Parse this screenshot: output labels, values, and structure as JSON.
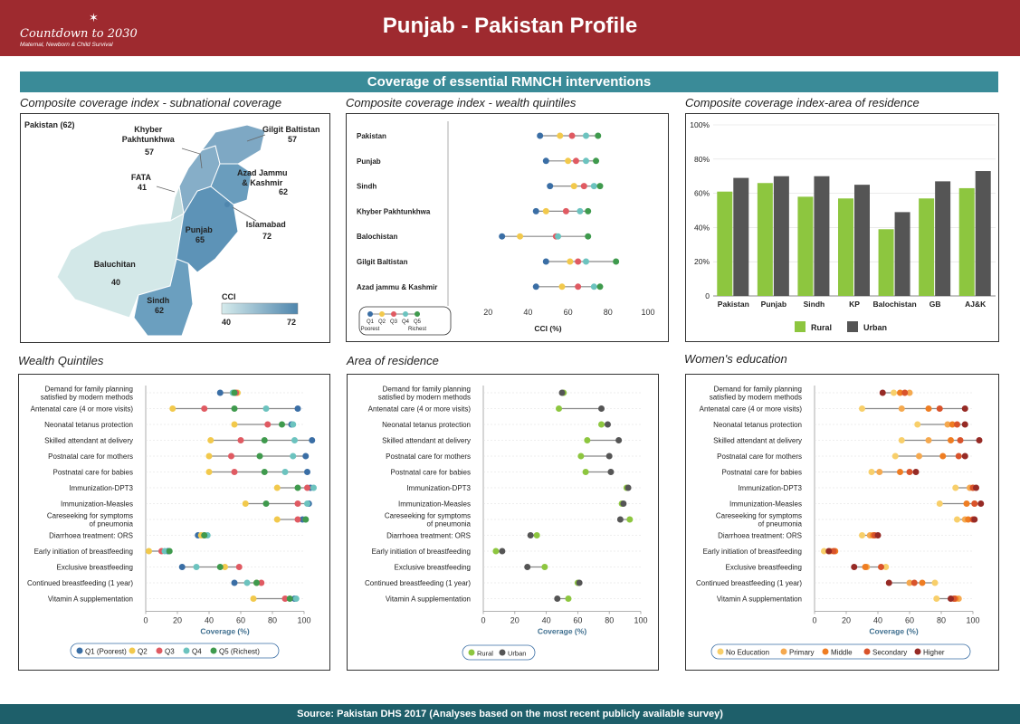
{
  "header": {
    "logo_title": "Countdown to 2030",
    "logo_subtitle": "Maternal, Newborn & Child Survival",
    "title": "Punjab - Pakistan  Profile"
  },
  "section_title": "Coverage of essential RMNCH interventions",
  "footer": "Source: Pakistan DHS 2017 (Analyses based on the most recent publicly available survey)",
  "colors": {
    "q1": "#3a6ea5",
    "q2": "#f2c94c",
    "q3": "#e05a62",
    "q4": "#6cc3bf",
    "q5": "#3f9a4d",
    "rural": "#8dc63f",
    "urban": "#555555",
    "no_education": "#f8cf6a",
    "primary": "#f5a94f",
    "middle": "#ef7d22",
    "secondary": "#d9532b",
    "higher": "#962a25"
  },
  "map": {
    "title": "Composite coverage index - subnational coverage",
    "national": "Pakistan (62)",
    "regions": [
      {
        "name": "Khyber\nPakhtunkhwa",
        "value": "57"
      },
      {
        "name": "Gilgit Baltistan",
        "value": "57"
      },
      {
        "name": "FATA",
        "value": "41"
      },
      {
        "name": "Azad Jammu\n& Kashmir",
        "value": "62"
      },
      {
        "name": "Islamabad",
        "value": "72"
      },
      {
        "name": "Punjab",
        "value": "65"
      },
      {
        "name": "Baluchitan",
        "value": "40"
      },
      {
        "name": "Sindh",
        "value": "62"
      }
    ],
    "legend_title": "CCI",
    "legend_min": "40",
    "legend_max": "72"
  },
  "chart_data": [
    {
      "type": "scatter",
      "id": "cci_wealth",
      "title": "Composite coverage index - wealth quintiles",
      "xlabel": "CCI (%)",
      "xlim": [
        0,
        100
      ],
      "xticks": [
        0,
        20,
        40,
        60,
        80,
        100
      ],
      "categories": [
        "Pakistan",
        "Punjab",
        "Sindh",
        "Khyber Pakhtunkhwa",
        "Balochistan",
        "Gilgit Baltistan",
        "Azad jammu & Kashmir"
      ],
      "series": [
        {
          "name": "Q1",
          "values": [
            46,
            49,
            51,
            44,
            27,
            49,
            44
          ]
        },
        {
          "name": "Q2",
          "values": [
            56,
            60,
            63,
            49,
            36,
            61,
            57
          ]
        },
        {
          "name": "Q3",
          "values": [
            62,
            64,
            68,
            59,
            54,
            65,
            65
          ]
        },
        {
          "name": "Q4",
          "values": [
            69,
            69,
            73,
            66,
            55,
            69,
            73
          ]
        },
        {
          "name": "Q5",
          "values": [
            75,
            74,
            76,
            70,
            70,
            84,
            76
          ]
        }
      ],
      "legend": {
        "labels": [
          "Q1",
          "Q2",
          "Q3",
          "Q4",
          "Q5"
        ],
        "sub_left": "Poorest",
        "sub_right": "Richest"
      }
    },
    {
      "type": "bar",
      "id": "cci_residence",
      "title": "Composite coverage index-area of residence",
      "categories": [
        "Pakistan",
        "Punjab",
        "Sindh",
        "KP",
        "Balochistan",
        "GB",
        "AJ&K"
      ],
      "ylim": [
        0,
        100
      ],
      "yticks": [
        "0",
        "20%",
        "40%",
        "60%",
        "80%",
        "100%"
      ],
      "series": [
        {
          "name": "Rural",
          "values": [
            61,
            66,
            58,
            57,
            39,
            57,
            63
          ]
        },
        {
          "name": "Urban",
          "values": [
            69,
            70,
            70,
            65,
            49,
            67,
            73
          ]
        }
      ]
    },
    {
      "type": "scatter",
      "id": "wealth_quintiles",
      "title": "Wealth Quintiles",
      "xlabel": "Coverage (%)",
      "xlim": [
        0,
        100
      ],
      "xticks": [
        0,
        20,
        40,
        60,
        80,
        100
      ],
      "categories": [
        "Demand for family planning\nsatisfied by modern methods",
        "Antenatal care (4 or more visits)",
        "Neonatal tetanus protection",
        "Skilled attendant at delivery",
        "Postnatal care for mothers",
        "Postnatal care for babies",
        "Immunization-DPT3",
        "Immunization-Measles",
        "Careseeking for symptoms\nof pneumonia",
        "Diarrhoea treatment: ORS",
        "Early initiation of breastfeeding",
        "Exclusive breastfeeding",
        "Continued breastfeeding (1 year)",
        "Vitamin A supplementation"
      ],
      "series": [
        {
          "name": "Q1 (Poorest)",
          "values": [
            47,
            96,
            92,
            105,
            101,
            102,
            104,
            103,
            99,
            33,
            14,
            23,
            56,
            94
          ]
        },
        {
          "name": "Q2",
          "values": [
            58,
            17,
            56,
            41,
            40,
            40,
            83,
            63,
            83,
            35,
            2,
            50,
            70,
            68
          ]
        },
        {
          "name": "Q3",
          "values": [
            57,
            37,
            77,
            60,
            54,
            56,
            102,
            96,
            96,
            37,
            10,
            59,
            73,
            88
          ]
        },
        {
          "name": "Q4",
          "values": [
            55,
            76,
            93,
            94,
            93,
            88,
            106,
            102,
            101,
            39,
            12,
            32,
            64,
            95
          ]
        },
        {
          "name": "Q5 (Richest)",
          "values": [
            56,
            56,
            86,
            75,
            72,
            75,
            96,
            76,
            101,
            37,
            15,
            47,
            70,
            91
          ]
        }
      ]
    },
    {
      "type": "scatter",
      "id": "area_of_residence",
      "title": "Area of residence",
      "xlabel": "Coverage (%)",
      "xlim": [
        0,
        100
      ],
      "xticks": [
        0,
        20,
        40,
        60,
        80,
        100
      ],
      "categories": [
        "Demand for family planning\nsatisfied by modern methods",
        "Antenatal care (4 or more visits)",
        "Neonatal tetanus protection",
        "Skilled attendant at delivery",
        "Postnatal care for mothers",
        "Postnatal care for babies",
        "Immunization-DPT3",
        "Immunization-Measles",
        "Careseeking for symptoms\nof pneumonia",
        "Diarrhoea treatment: ORS",
        "Early initiation of breastfeeding",
        "Exclusive breastfeeding",
        "Continued breastfeeding (1 year)",
        "Vitamin A supplementation"
      ],
      "series": [
        {
          "name": "Rural",
          "values": [
            51,
            48,
            75,
            66,
            62,
            65,
            91,
            88,
            93,
            34,
            8,
            39,
            60,
            54
          ]
        },
        {
          "name": "Urban",
          "values": [
            50,
            75,
            79,
            86,
            80,
            81,
            92,
            89,
            87,
            30,
            12,
            28,
            61,
            47
          ]
        }
      ]
    },
    {
      "type": "scatter",
      "id": "womens_education",
      "title": "Women's education",
      "xlabel": "Coverage (%)",
      "xlim": [
        0,
        100
      ],
      "xticks": [
        0,
        20,
        40,
        60,
        80,
        100
      ],
      "categories": [
        "Demand for family planning\nsatisfied by modern methods",
        "Antenatal care (4 or more visits)",
        "Neonatal tetanus protection",
        "Skilled attendant at delivery",
        "Postnatal care for mothers",
        "Postnatal care for babies",
        "Immunization-DPT3",
        "Immunization-Measles",
        "Careseeking for symptoms\nof pneumonia",
        "Diarrhoea treatment: ORS",
        "Early initiation of breastfeeding",
        "Exclusive breastfeeding",
        "Continued breastfeeding (1 year)",
        "Vitamin A supplementation"
      ],
      "series": [
        {
          "name": "No Education",
          "values": [
            50,
            30,
            65,
            55,
            51,
            36,
            89,
            79,
            90,
            30,
            6,
            45,
            76,
            77
          ]
        },
        {
          "name": "Primary",
          "values": [
            60,
            55,
            84,
            72,
            66,
            41,
            98,
            101,
            95,
            35,
            10,
            33,
            60,
            91
          ]
        },
        {
          "name": "Middle",
          "values": [
            54,
            72,
            87,
            86,
            81,
            54,
            100,
            96,
            97,
            37,
            13,
            32,
            68,
            89
          ]
        },
        {
          "name": "Secondary",
          "values": [
            57,
            79,
            90,
            92,
            91,
            60,
            100,
            101,
            100,
            38,
            12,
            42,
            63,
            88
          ]
        },
        {
          "name": "Higher",
          "values": [
            43,
            95,
            95,
            104,
            95,
            64,
            102,
            105,
            101,
            40,
            9,
            25,
            47,
            86
          ]
        }
      ]
    }
  ]
}
